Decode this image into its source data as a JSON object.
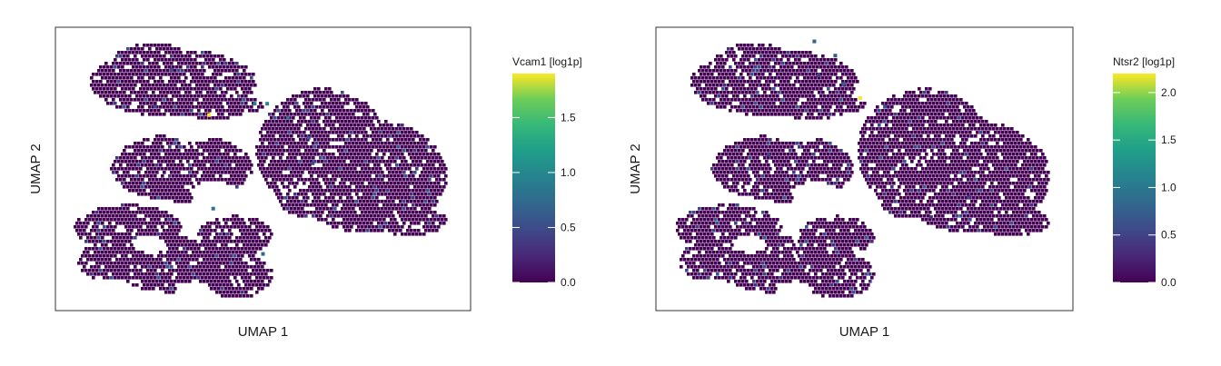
{
  "chart_data": [
    {
      "type": "heatmap",
      "subtype": "umap-hexbin",
      "xlabel": "UMAP 1",
      "ylabel": "UMAP 2",
      "colormap": "viridis",
      "colorbar": {
        "title": "Vcam1 [log1p]",
        "min": 0.0,
        "max": 1.9,
        "ticks": [
          "0.0",
          "0.5",
          "1.0",
          "1.5"
        ],
        "tick_values": [
          0.0,
          0.5,
          1.0,
          1.5
        ]
      },
      "baseline_value": 0.0,
      "notable_points": [
        {
          "umap1": 0.37,
          "umap2": 0.69,
          "value": 1.9
        },
        {
          "umap1": 0.51,
          "umap2": 0.73,
          "value": 1.0
        },
        {
          "umap1": 0.48,
          "umap2": 0.73,
          "value": 0.9
        },
        {
          "umap1": 0.56,
          "umap2": 0.68,
          "value": 0.8
        },
        {
          "umap1": 0.38,
          "umap2": 0.36,
          "value": 0.8
        },
        {
          "umap1": 0.61,
          "umap2": 0.61,
          "value": 0.6
        },
        {
          "umap1": 0.28,
          "umap2": 0.85,
          "value": 0.5
        },
        {
          "umap1": 0.24,
          "umap2": 0.72,
          "value": 0.5
        },
        {
          "umap1": 0.62,
          "umap2": 0.52,
          "value": 0.5
        },
        {
          "umap1": 0.5,
          "umap2": 0.2,
          "value": 0.7
        }
      ]
    },
    {
      "type": "heatmap",
      "subtype": "umap-hexbin",
      "xlabel": "UMAP 1",
      "ylabel": "UMAP 2",
      "colormap": "viridis",
      "colorbar": {
        "title": "Ntsr2 [log1p]",
        "min": 0.0,
        "max": 2.2,
        "ticks": [
          "0.0",
          "0.5",
          "1.0",
          "1.5",
          "2.0"
        ],
        "tick_values": [
          0.0,
          0.5,
          1.0,
          1.5,
          2.0
        ]
      },
      "baseline_value": 0.0,
      "notable_points": [
        {
          "umap1": 0.49,
          "umap2": 0.75,
          "value": 2.2
        },
        {
          "umap1": 0.38,
          "umap2": 0.95,
          "value": 0.8
        },
        {
          "umap1": 0.43,
          "umap2": 0.9,
          "value": 0.7
        },
        {
          "umap1": 0.45,
          "umap2": 0.8,
          "value": 0.8
        },
        {
          "umap1": 0.55,
          "umap2": 0.72,
          "value": 0.6
        },
        {
          "umap1": 0.39,
          "umap2": 0.83,
          "value": 0.5
        },
        {
          "umap1": 0.27,
          "umap2": 0.55,
          "value": 0.5
        },
        {
          "umap1": 0.75,
          "umap2": 0.4,
          "value": 0.5
        },
        {
          "umap1": 0.66,
          "umap2": 0.33,
          "value": 0.4
        }
      ]
    }
  ],
  "colors": {
    "viridis_low": "#440154",
    "viridis_mid": "#21908d",
    "viridis_high": "#fde725",
    "frame": "#333333",
    "text": "#1a1a1a"
  }
}
